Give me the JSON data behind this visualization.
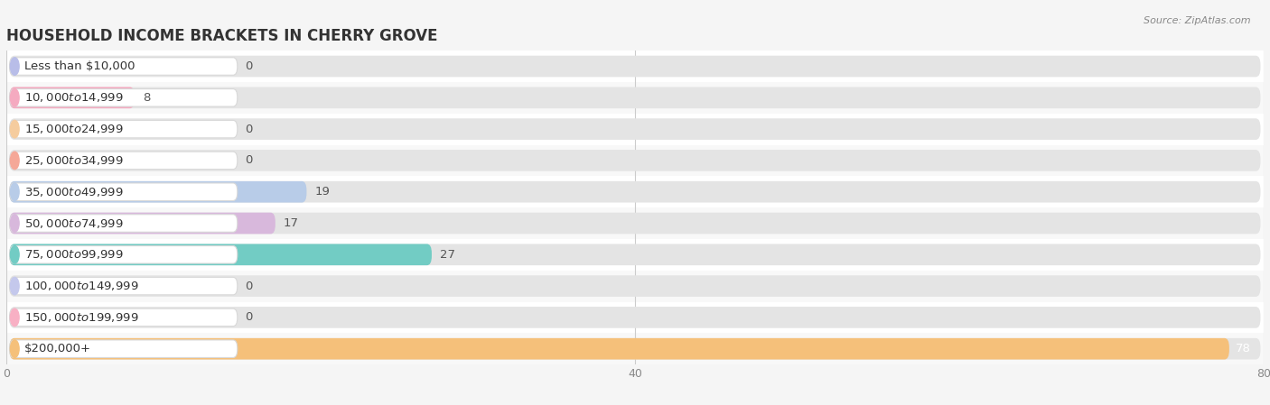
{
  "title": "HOUSEHOLD INCOME BRACKETS IN CHERRY GROVE",
  "source": "Source: ZipAtlas.com",
  "categories": [
    "Less than $10,000",
    "$10,000 to $14,999",
    "$15,000 to $24,999",
    "$25,000 to $34,999",
    "$35,000 to $49,999",
    "$50,000 to $74,999",
    "$75,000 to $99,999",
    "$100,000 to $149,999",
    "$150,000 to $199,999",
    "$200,000+"
  ],
  "values": [
    0,
    8,
    0,
    0,
    19,
    17,
    27,
    0,
    0,
    78
  ],
  "bar_colors": [
    "#b8bde8",
    "#f5aac0",
    "#f5cc9e",
    "#f5a898",
    "#b8cce8",
    "#d8b8dc",
    "#72ccc4",
    "#c4c8ec",
    "#f8b0c4",
    "#f5c07a"
  ],
  "row_colors": [
    "#ffffff",
    "#f0f0f0"
  ],
  "xlim": [
    0,
    80
  ],
  "xticks": [
    0,
    40,
    80
  ],
  "background_color": "#f5f5f5",
  "title_fontsize": 12,
  "label_fontsize": 9.5,
  "value_fontsize": 9.5
}
